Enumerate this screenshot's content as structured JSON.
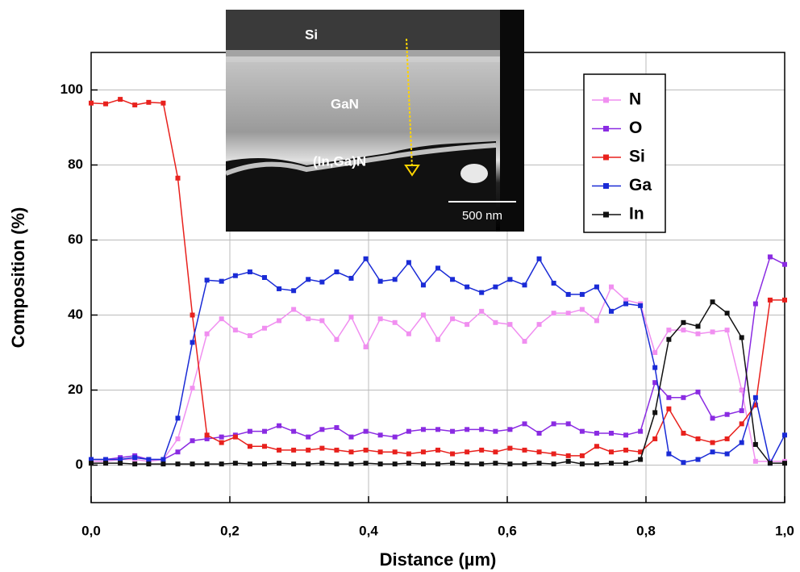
{
  "chart_data": {
    "type": "line",
    "x_label": "Distance (µm)",
    "y_label": "Composition (%)",
    "x": [
      0,
      0.021,
      0.042,
      0.063,
      0.083,
      0.104,
      0.125,
      0.146,
      0.167,
      0.188,
      0.208,
      0.229,
      0.25,
      0.271,
      0.292,
      0.313,
      0.333,
      0.354,
      0.375,
      0.396,
      0.417,
      0.438,
      0.458,
      0.479,
      0.5,
      0.521,
      0.542,
      0.563,
      0.583,
      0.604,
      0.625,
      0.646,
      0.667,
      0.688,
      0.708,
      0.729,
      0.75,
      0.771,
      0.792,
      0.813,
      0.833,
      0.854,
      0.875,
      0.896,
      0.917,
      0.938,
      0.958,
      0.979,
      1.0
    ],
    "series": [
      {
        "name": "N",
        "color": "#f08ff0",
        "values": [
          1,
          1,
          1.5,
          1.5,
          1,
          1.5,
          7,
          20.5,
          35,
          39,
          36,
          34.5,
          36.5,
          38.5,
          41.5,
          39,
          38.5,
          33.5,
          39.5,
          31.5,
          39,
          38,
          35,
          40,
          33.5,
          39,
          37.5,
          41,
          38,
          37.5,
          33,
          37.5,
          40.5,
          40.5,
          41.5,
          38.5,
          47.5,
          44,
          43,
          30,
          36,
          36,
          35,
          35.5,
          36,
          20,
          1,
          1,
          1
        ]
      },
      {
        "name": "O",
        "color": "#8a2be2",
        "values": [
          1.5,
          1.5,
          2,
          2.5,
          1.5,
          1.5,
          3.5,
          6.5,
          7,
          7.5,
          8,
          9,
          9,
          10.5,
          9,
          7.5,
          9.5,
          10,
          7.5,
          9,
          8,
          7.5,
          9,
          9.5,
          9.5,
          9,
          9.5,
          9.5,
          9,
          9.5,
          11,
          8.5,
          11,
          11,
          9,
          8.5,
          8.5,
          8,
          9,
          22,
          18,
          18,
          19.5,
          12.5,
          13.5,
          14.5,
          43,
          55.5,
          53.5
        ]
      },
      {
        "name": "Si",
        "color": "#e8211d",
        "values": [
          96.5,
          96.3,
          97.5,
          96,
          96.7,
          96.5,
          76.5,
          40,
          8,
          6,
          7.5,
          5,
          5,
          4,
          4,
          4,
          4.5,
          4,
          3.5,
          4,
          3.5,
          3.5,
          3,
          3.5,
          4,
          3,
          3.5,
          4,
          3.5,
          4.5,
          4,
          3.5,
          3,
          2.5,
          2.5,
          5,
          3.5,
          4,
          3.5,
          7,
          15,
          8.5,
          7,
          6,
          7,
          11,
          16,
          44,
          44
        ]
      },
      {
        "name": "Ga",
        "color": "#1a2bd6",
        "values": [
          1.5,
          1.5,
          1.5,
          2,
          1.5,
          1.5,
          12.5,
          32.7,
          49.3,
          49,
          50.5,
          51.5,
          50,
          47,
          46.5,
          49.5,
          48.8,
          51.5,
          49.8,
          55,
          49,
          49.5,
          54,
          48,
          52.5,
          49.5,
          47.5,
          46,
          47.5,
          49.5,
          48,
          55,
          48.5,
          45.5,
          45.5,
          47.5,
          41,
          43,
          42.5,
          26,
          3,
          0.7,
          1.5,
          3.5,
          3,
          6,
          18,
          0.5,
          8
        ]
      },
      {
        "name": "In",
        "color": "#111111",
        "values": [
          0.5,
          0.5,
          0.5,
          0.3,
          0.3,
          0.3,
          0.3,
          0.3,
          0.3,
          0.3,
          0.5,
          0.3,
          0.3,
          0.5,
          0.3,
          0.3,
          0.5,
          0.3,
          0.3,
          0.5,
          0.3,
          0.3,
          0.5,
          0.3,
          0.3,
          0.5,
          0.3,
          0.3,
          0.5,
          0.3,
          0.3,
          0.5,
          0.3,
          1,
          0.3,
          0.3,
          0.5,
          0.5,
          1.5,
          14,
          33.5,
          38,
          37,
          43.5,
          40.5,
          34,
          5.5,
          0.5,
          0.5
        ]
      }
    ],
    "xlim": [
      0,
      1.0
    ],
    "xticks": [
      {
        "value": 0,
        "label": "0,0"
      },
      {
        "value": 0.2,
        "label": "0,2"
      },
      {
        "value": 0.4,
        "label": "0,4"
      },
      {
        "value": 0.6,
        "label": "0,6"
      },
      {
        "value": 0.8,
        "label": "0,8"
      },
      {
        "value": 1.0,
        "label": "1,0"
      }
    ],
    "ylim": [
      -10,
      110
    ],
    "yticks": [
      0,
      20,
      40,
      60,
      80,
      100
    ],
    "grid": true,
    "legend": "upper right",
    "inset": {
      "labels": [
        "Si",
        "GaN",
        "(In,Ga)N"
      ],
      "scale_bar": "500 nm"
    }
  }
}
